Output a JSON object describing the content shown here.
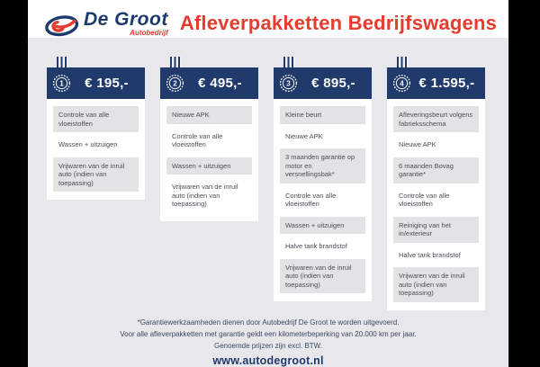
{
  "header": {
    "logo_name": "De Groot",
    "logo_subtitle": "Autobedrijf",
    "title": "Afleverpakketten Bedrijfswagens"
  },
  "colors": {
    "navy": "#203a6c",
    "red": "#e63c2f",
    "band_gray": "#e8e8ec",
    "row_gray": "#e3e3e6",
    "item_text": "#4a4e55",
    "pillar_black": "#000000"
  },
  "packages": [
    {
      "rank": "1",
      "price": "€ 195,-",
      "items": [
        "Controle van alle vloeistoffen",
        "Wassen + uitzuigen",
        "Vrijwaren van de inruil auto (indien van toepassing)"
      ]
    },
    {
      "rank": "2",
      "price": "€ 495,-",
      "items": [
        "Nieuwe APK",
        "Controle van alle vloeistoffen",
        "Wassen + uitzuigen",
        "Vrijwaren van de inruil auto (indien van toepassing)"
      ]
    },
    {
      "rank": "3",
      "price": "€ 895,-",
      "items": [
        "Kleine beurt",
        "Nieuwe APK",
        "3 maanden garantie op motor en versnellingsbak*",
        "Controle van alle vloeistoffen",
        "Wassen + uitzuigen",
        "Halve tank brandstof",
        "Vrijwaren van de inruil auto (indien van toepassing)"
      ]
    },
    {
      "rank": "4",
      "price": "€ 1.595,-",
      "items": [
        "Afleveringsbeurt volgens fabrieksschema",
        "Nieuwe APK",
        "6 maanden Bovag garantie*",
        "Controle van alle vloeistoffen",
        "Reiniging van het in/exterieur",
        "Halve tank brandstof",
        "Vrijwaren van de inruil auto (indien van toepassing)"
      ]
    }
  ],
  "footer": {
    "notes": [
      "*Garantiewerkzaamheden dienen door Autobedrijf De Groot te worden uitgevoerd.",
      "Voor alle afleverpakketten met garantie geldt een kilometerbeperking van 20.000 km per jaar.",
      "Genoemde prijzen zijn excl. BTW."
    ],
    "website": "www.autodegroot.nl"
  }
}
